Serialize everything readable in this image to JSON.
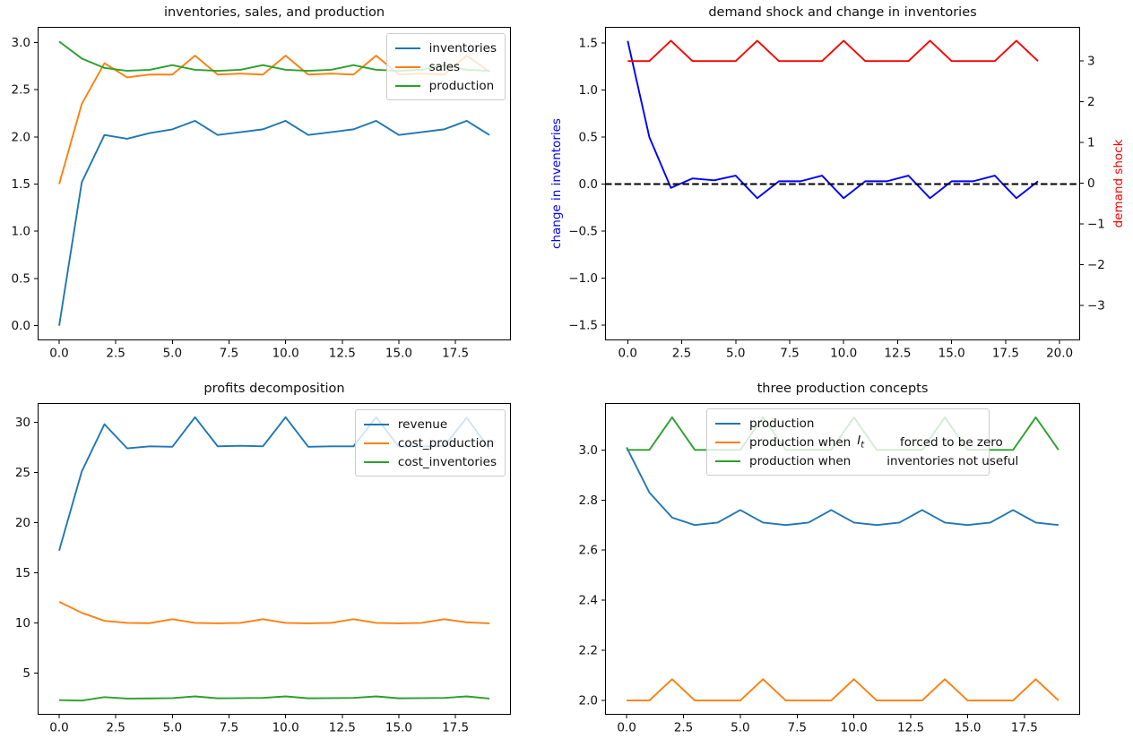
{
  "chart_data": [
    {
      "type": "line",
      "title": "inventories, sales, and production",
      "x": [
        0,
        1,
        2,
        3,
        4,
        5,
        6,
        7,
        8,
        9,
        10,
        11,
        12,
        13,
        14,
        15,
        16,
        17,
        18,
        19
      ],
      "xlim": [
        -0.95,
        19.95
      ],
      "ylim": [
        -0.155,
        3.165
      ],
      "xticks": {
        "values": [
          0,
          2.5,
          5,
          7.5,
          10,
          12.5,
          15,
          17.5
        ],
        "labels": [
          "0.0",
          "2.5",
          "5.0",
          "7.5",
          "10.0",
          "12.5",
          "15.0",
          "17.5"
        ]
      },
      "yticks": {
        "values": [
          0,
          0.5,
          1,
          1.5,
          2,
          2.5,
          3
        ],
        "labels": [
          "0.0",
          "0.5",
          "1.0",
          "1.5",
          "2.0",
          "2.5",
          "3.0"
        ]
      },
      "grid": false,
      "series": [
        {
          "name": "inventories",
          "color": "#1f77b4",
          "values": [
            0.0,
            1.52,
            2.02,
            1.98,
            2.04,
            2.08,
            2.17,
            2.02,
            2.05,
            2.08,
            2.17,
            2.02,
            2.05,
            2.08,
            2.17,
            2.02,
            2.05,
            2.08,
            2.17,
            2.02
          ]
        },
        {
          "name": "sales",
          "color": "#ff7f0e",
          "values": [
            1.5,
            2.35,
            2.78,
            2.63,
            2.66,
            2.66,
            2.86,
            2.66,
            2.67,
            2.66,
            2.86,
            2.66,
            2.67,
            2.66,
            2.86,
            2.66,
            2.67,
            2.66,
            2.86,
            2.69
          ]
        },
        {
          "name": "production",
          "color": "#2ca02c",
          "values": [
            3.01,
            2.83,
            2.73,
            2.7,
            2.71,
            2.76,
            2.71,
            2.7,
            2.71,
            2.76,
            2.71,
            2.7,
            2.71,
            2.76,
            2.71,
            2.7,
            2.71,
            2.76,
            2.71,
            2.7
          ]
        }
      ],
      "legend": {
        "location": "upper right",
        "entries": [
          {
            "label": "inventories",
            "color": "#1f77b4"
          },
          {
            "label": "sales",
            "color": "#ff7f0e"
          },
          {
            "label": "production",
            "color": "#2ca02c"
          }
        ]
      }
    },
    {
      "type": "line",
      "title": "demand shock and change in inventories",
      "x": [
        0,
        1,
        2,
        3,
        4,
        5,
        6,
        7,
        8,
        9,
        10,
        11,
        12,
        13,
        14,
        15,
        16,
        17,
        18,
        19
      ],
      "xlim": [
        -1.05,
        20.95
      ],
      "ylim": [
        -1.66,
        1.67
      ],
      "right_ylim": [
        -3.86,
        3.84
      ],
      "xticks": {
        "values": [
          0,
          2.5,
          5,
          7.5,
          10,
          12.5,
          15,
          17.5,
          20
        ],
        "labels": [
          "0.0",
          "2.5",
          "5.0",
          "7.5",
          "10.0",
          "12.5",
          "15.0",
          "17.5",
          "20.0"
        ]
      },
      "yticks": {
        "values": [
          -1.5,
          -1,
          -0.5,
          0,
          0.5,
          1,
          1.5
        ],
        "labels": [
          "−1.5",
          "−1.0",
          "−0.5",
          "0.0",
          "0.5",
          "1.0",
          "1.5"
        ]
      },
      "right_yticks": {
        "values": [
          -3,
          -2,
          -1,
          0,
          1,
          2,
          3
        ],
        "labels": [
          "−3",
          "−2",
          "−1",
          "0",
          "1",
          "2",
          "3"
        ]
      },
      "ylabel": {
        "text": "change in inventories",
        "color": "#0000ff"
      },
      "right_ylabel": {
        "text": "demand shock",
        "color": "#ff0000"
      },
      "grid": false,
      "series": [
        {
          "name": "change in inventories",
          "color": "#0000ff",
          "values": [
            1.52,
            0.5,
            -0.04,
            0.06,
            0.04,
            0.09,
            -0.15,
            0.03,
            0.03,
            0.09,
            -0.15,
            0.03,
            0.03,
            0.09,
            -0.15,
            0.03,
            0.03,
            0.09,
            -0.15,
            0.03
          ]
        },
        {
          "name": "zero line",
          "color": "#000000",
          "dash": true,
          "x": [
            -1.05,
            20.95
          ],
          "values": [
            0,
            0
          ]
        },
        {
          "name": "demand shock",
          "color": "#ff0000",
          "axis": "right",
          "values": [
            3,
            3,
            3.5,
            3,
            3,
            3,
            3.5,
            3,
            3,
            3,
            3.5,
            3,
            3,
            3,
            3.5,
            3,
            3,
            3,
            3.5,
            3
          ]
        }
      ],
      "legend": null
    },
    {
      "type": "line",
      "title": "profits decomposition",
      "x": [
        0,
        1,
        2,
        3,
        4,
        5,
        6,
        7,
        8,
        9,
        10,
        11,
        12,
        13,
        14,
        15,
        16,
        17,
        18,
        19
      ],
      "xlim": [
        -0.95,
        19.95
      ],
      "ylim": [
        0.84,
        31.91
      ],
      "xticks": {
        "values": [
          0,
          2.5,
          5,
          7.5,
          10,
          12.5,
          15,
          17.5
        ],
        "labels": [
          "0.0",
          "2.5",
          "5.0",
          "7.5",
          "10.0",
          "12.5",
          "15.0",
          "17.5"
        ]
      },
      "yticks": {
        "values": [
          5,
          10,
          15,
          20,
          25,
          30
        ],
        "labels": [
          "5",
          "10",
          "15",
          "20",
          "25",
          "30"
        ]
      },
      "grid": false,
      "series": [
        {
          "name": "revenue",
          "color": "#1f77b4",
          "values": [
            17.2,
            25.1,
            29.8,
            27.4,
            27.6,
            27.55,
            30.5,
            27.6,
            27.65,
            27.6,
            30.5,
            27.55,
            27.6,
            27.6,
            30.5,
            27.55,
            27.6,
            27.6,
            30.45,
            27.35
          ]
        },
        {
          "name": "cost_production",
          "color": "#ff7f0e",
          "values": [
            12.1,
            11.0,
            10.2,
            10.0,
            9.97,
            10.37,
            10.0,
            9.95,
            10.0,
            10.37,
            10.0,
            9.95,
            10.0,
            10.37,
            10.0,
            9.95,
            10.0,
            10.37,
            10.05,
            9.95
          ]
        },
        {
          "name": "cost_inventories",
          "color": "#2ca02c",
          "values": [
            2.3,
            2.25,
            2.6,
            2.45,
            2.47,
            2.5,
            2.67,
            2.48,
            2.5,
            2.52,
            2.67,
            2.48,
            2.5,
            2.52,
            2.67,
            2.48,
            2.5,
            2.52,
            2.67,
            2.45
          ]
        }
      ],
      "legend": {
        "location": "upper right",
        "entries": [
          {
            "label": "revenue",
            "color": "#1f77b4"
          },
          {
            "label": "cost_production",
            "color": "#ff7f0e"
          },
          {
            "label": "cost_inventories",
            "color": "#2ca02c"
          }
        ]
      }
    },
    {
      "type": "line",
      "title": "three production concepts",
      "x": [
        0,
        1,
        2,
        3,
        4,
        5,
        6,
        7,
        8,
        9,
        10,
        11,
        12,
        13,
        14,
        15,
        16,
        17,
        18,
        19
      ],
      "xlim": [
        -0.95,
        19.95
      ],
      "ylim": [
        1.943,
        3.187
      ],
      "xticks": {
        "values": [
          0,
          2.5,
          5,
          7.5,
          10,
          12.5,
          15,
          17.5
        ],
        "labels": [
          "0.0",
          "2.5",
          "5.0",
          "7.5",
          "10.0",
          "12.5",
          "15.0",
          "17.5"
        ]
      },
      "yticks": {
        "values": [
          2.0,
          2.2,
          2.4,
          2.6,
          2.8,
          3.0
        ],
        "labels": [
          "2.0",
          "2.2",
          "2.4",
          "2.6",
          "2.8",
          "3.0"
        ]
      },
      "grid": false,
      "series": [
        {
          "name": "production",
          "color": "#1f77b4",
          "values": [
            3.01,
            2.83,
            2.73,
            2.7,
            2.71,
            2.76,
            2.71,
            2.7,
            2.71,
            2.76,
            2.71,
            2.7,
            2.71,
            2.76,
            2.71,
            2.7,
            2.71,
            2.76,
            2.71,
            2.7
          ]
        },
        {
          "name": "production when I_t forced to be zero",
          "color": "#ff7f0e",
          "values": [
            2.0,
            2.0,
            2.085,
            2.0,
            2.0,
            2.0,
            2.085,
            2.0,
            2.0,
            2.0,
            2.085,
            2.0,
            2.0,
            2.0,
            2.085,
            2.0,
            2.0,
            2.0,
            2.085,
            2.0
          ]
        },
        {
          "name": "production when inventories not useful",
          "color": "#2ca02c",
          "values": [
            3.0,
            3.0,
            3.13,
            3.0,
            3.0,
            3.0,
            3.13,
            3.0,
            3.0,
            3.0,
            3.13,
            3.0,
            3.0,
            3.0,
            3.13,
            3.0,
            3.0,
            3.0,
            3.13,
            3.0
          ]
        }
      ],
      "legend": {
        "location": "upper center",
        "entries": [
          {
            "label": "production",
            "color": "#1f77b4"
          },
          {
            "label": "production when",
            "math": {
              "base": "I",
              "sub": "t"
            },
            "label2": "forced to be zero",
            "color": "#ff7f0e"
          },
          {
            "label": "production when",
            "label2": "inventories not useful",
            "color": "#2ca02c"
          }
        ]
      }
    }
  ]
}
